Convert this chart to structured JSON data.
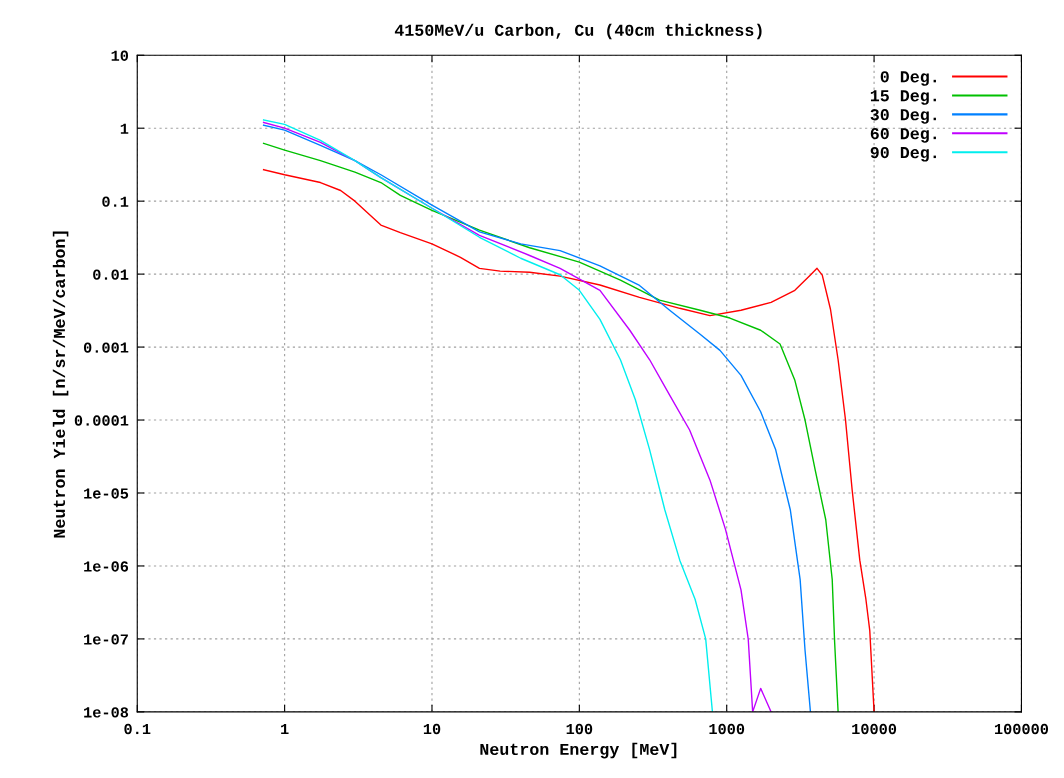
{
  "chart_data": {
    "type": "line",
    "title": "4150MeV/u Carbon, Cu (40cm thickness)",
    "xlabel": "Neutron Energy [MeV]",
    "ylabel": "Neutron Yield [n/sr/MeV/carbon]",
    "log": "xy",
    "xlim": [
      0.1,
      100000
    ],
    "ylim": [
      1e-08,
      10
    ],
    "xticks": [
      0.1,
      1,
      10,
      100,
      1000,
      10000,
      100000
    ],
    "yticks": [
      1e-08,
      1e-07,
      1e-06,
      1e-05,
      0.0001,
      0.001,
      0.01,
      0.1,
      1,
      10
    ],
    "grid": true,
    "legend": "top right",
    "line_style": "solid",
    "series": [
      {
        "name": "0 Deg.",
        "color": "#ff0000",
        "x": [
          0.72,
          1,
          1.75,
          2.4,
          3.0,
          4.5,
          6.1,
          10,
          15.6,
          21,
          29,
          46,
          74,
          138,
          256,
          480,
          770,
          1250,
          2000,
          2900,
          3700,
          4100,
          4450,
          5060,
          5700,
          6400,
          7100,
          8000,
          8800,
          9350,
          10000
        ],
        "values": [
          0.27,
          0.23,
          0.18,
          0.14,
          0.1,
          0.047,
          0.037,
          0.026,
          0.017,
          0.012,
          0.011,
          0.0106,
          0.0094,
          0.0071,
          0.0048,
          0.0034,
          0.0027,
          0.0032,
          0.0041,
          0.006,
          0.0097,
          0.012,
          0.0097,
          0.0033,
          0.00067,
          0.0001,
          1.1e-05,
          1.2e-06,
          3.5e-07,
          1.3e-07,
          1e-08
        ]
      },
      {
        "name": "15 Deg.",
        "color": "#00c000",
        "x": [
          0.72,
          1,
          1.75,
          3.0,
          4.5,
          6.1,
          10,
          21,
          46,
          100,
          190,
          350,
          660,
          1050,
          1700,
          2300,
          2900,
          3400,
          4000,
          4700,
          5200,
          5400,
          5700
        ],
        "values": [
          0.62,
          0.5,
          0.36,
          0.25,
          0.18,
          0.12,
          0.075,
          0.04,
          0.023,
          0.0146,
          0.0083,
          0.0044,
          0.0032,
          0.0025,
          0.0017,
          0.0011,
          0.00035,
          0.0001,
          2e-05,
          4.3e-06,
          6.5e-07,
          9e-08,
          1e-08
        ]
      },
      {
        "name": "30 Deg.",
        "color": "#0080ff",
        "x": [
          0.72,
          1,
          1.75,
          3.0,
          4.5,
          10,
          21,
          40,
          74,
          138,
          256,
          410,
          660,
          900,
          1250,
          1700,
          2150,
          2700,
          3150,
          3400,
          3700
        ],
        "values": [
          1.1,
          0.94,
          0.58,
          0.36,
          0.23,
          0.088,
          0.038,
          0.026,
          0.021,
          0.013,
          0.007,
          0.0032,
          0.0015,
          0.0009,
          0.00041,
          0.00013,
          3.9e-05,
          5.9e-06,
          6.5e-07,
          7e-08,
          1e-08
        ]
      },
      {
        "name": "60 Deg.",
        "color": "#c000ff",
        "x": [
          0.72,
          1,
          1.75,
          3.0,
          4.5,
          10,
          21,
          46,
          74,
          138,
          220,
          300,
          410,
          560,
          770,
          980,
          1250,
          1400,
          1500,
          1700,
          2000
        ],
        "values": [
          1.2,
          1.0,
          0.64,
          0.36,
          0.21,
          0.08,
          0.034,
          0.018,
          0.012,
          0.006,
          0.0017,
          0.00067,
          0.00022,
          7.3e-05,
          1.5e-05,
          3.2e-06,
          4.7e-07,
          9.9e-08,
          1e-08,
          2.1e-08,
          1e-08
        ]
      },
      {
        "name": "90 Deg.",
        "color": "#00eeee",
        "x": [
          0.72,
          1,
          1.75,
          3.0,
          4.5,
          10,
          21,
          40,
          74,
          100,
          138,
          190,
          240,
          300,
          380,
          480,
          610,
          720,
          800
        ],
        "values": [
          1.3,
          1.13,
          0.68,
          0.36,
          0.21,
          0.08,
          0.032,
          0.0165,
          0.0098,
          0.006,
          0.0024,
          0.00067,
          0.00019,
          3.9e-05,
          5.9e-06,
          1.2e-06,
          3.5e-07,
          1e-07,
          1e-08
        ]
      }
    ]
  }
}
